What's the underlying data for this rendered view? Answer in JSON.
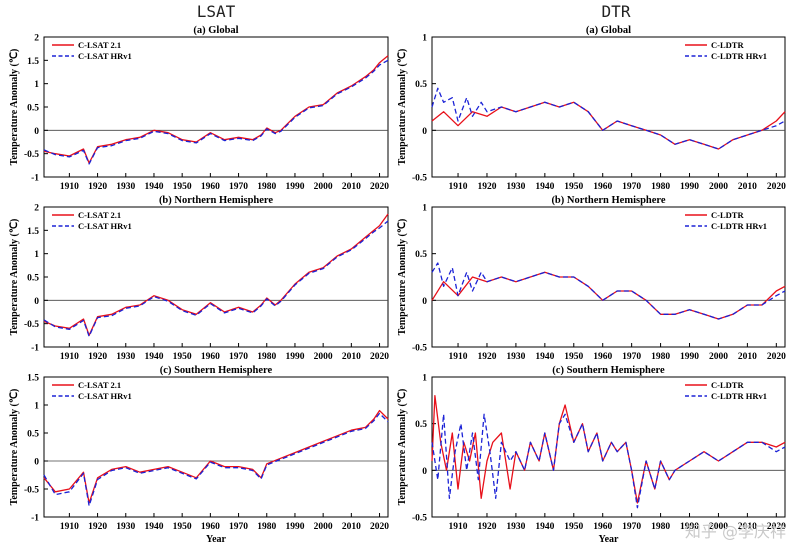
{
  "columns": {
    "left": "LSAT",
    "right": "DTR"
  },
  "watermark": "知乎 @李庆祥",
  "colors": {
    "series1": "#e8101a",
    "series2": "#1b22d6",
    "zero": "#444444"
  },
  "chart_data": [
    {
      "type": "line",
      "panel": "lsat-global",
      "title": "(a) Global",
      "ylabel": "Temperature Anomaly (℃)",
      "xlabel": "",
      "xlim": [
        1901,
        2023
      ],
      "ylim": [
        -1,
        2
      ],
      "yticks": [
        -1,
        -0.5,
        0,
        0.5,
        1,
        1.5,
        2
      ],
      "xticks": [
        1910,
        1920,
        1930,
        1940,
        1950,
        1960,
        1970,
        1980,
        1990,
        2000,
        2010,
        2020
      ],
      "legend": "top-left",
      "series": [
        {
          "name": "C-LSAT 2.1",
          "x": [
            1901,
            1905,
            1910,
            1915,
            1917,
            1920,
            1925,
            1930,
            1935,
            1940,
            1945,
            1950,
            1955,
            1960,
            1965,
            1970,
            1975,
            1978,
            1980,
            1983,
            1985,
            1990,
            1995,
            2000,
            2005,
            2010,
            2015,
            2018,
            2020,
            2023
          ],
          "y": [
            -0.45,
            -0.5,
            -0.55,
            -0.4,
            -0.7,
            -0.35,
            -0.3,
            -0.2,
            -0.15,
            0.0,
            -0.05,
            -0.2,
            -0.25,
            -0.05,
            -0.2,
            -0.15,
            -0.2,
            -0.1,
            0.05,
            -0.05,
            0.0,
            0.3,
            0.5,
            0.55,
            0.8,
            0.95,
            1.15,
            1.3,
            1.45,
            1.6
          ]
        },
        {
          "name": "C-LSAT HRv1",
          "x": [
            1901,
            1905,
            1910,
            1915,
            1917,
            1920,
            1925,
            1930,
            1935,
            1940,
            1945,
            1950,
            1955,
            1960,
            1965,
            1970,
            1975,
            1978,
            1980,
            1983,
            1985,
            1990,
            1995,
            2000,
            2005,
            2010,
            2015,
            2018,
            2020,
            2023
          ],
          "y": [
            -0.42,
            -0.52,
            -0.57,
            -0.43,
            -0.72,
            -0.37,
            -0.33,
            -0.22,
            -0.17,
            -0.02,
            -0.07,
            -0.22,
            -0.27,
            -0.07,
            -0.22,
            -0.17,
            -0.22,
            -0.12,
            0.03,
            -0.07,
            -0.02,
            0.28,
            0.48,
            0.53,
            0.78,
            0.93,
            1.12,
            1.27,
            1.4,
            1.5
          ]
        }
      ]
    },
    {
      "type": "line",
      "panel": "lsat-nh",
      "title": "(b) Northern Hemisphere",
      "ylabel": "Temperature Anomaly (℃)",
      "xlabel": "",
      "xlim": [
        1901,
        2023
      ],
      "ylim": [
        -1,
        2
      ],
      "yticks": [
        -1,
        -0.5,
        0,
        0.5,
        1,
        1.5,
        2
      ],
      "xticks": [
        1910,
        1920,
        1930,
        1940,
        1950,
        1960,
        1970,
        1980,
        1990,
        2000,
        2010,
        2020
      ],
      "legend": "top-left",
      "series": [
        {
          "name": "C-LSAT 2.1",
          "x": [
            1901,
            1905,
            1910,
            1915,
            1917,
            1920,
            1925,
            1930,
            1935,
            1940,
            1945,
            1950,
            1955,
            1960,
            1965,
            1970,
            1975,
            1978,
            1980,
            1983,
            1985,
            1990,
            1995,
            2000,
            2005,
            2010,
            2015,
            2018,
            2020,
            2023
          ],
          "y": [
            -0.45,
            -0.55,
            -0.6,
            -0.4,
            -0.75,
            -0.35,
            -0.3,
            -0.15,
            -0.1,
            0.1,
            0.0,
            -0.2,
            -0.3,
            -0.05,
            -0.25,
            -0.15,
            -0.25,
            -0.1,
            0.05,
            -0.1,
            0.0,
            0.35,
            0.6,
            0.7,
            0.95,
            1.1,
            1.35,
            1.5,
            1.6,
            1.85
          ]
        },
        {
          "name": "C-LSAT HRv1",
          "x": [
            1901,
            1905,
            1910,
            1915,
            1917,
            1920,
            1925,
            1930,
            1935,
            1940,
            1945,
            1950,
            1955,
            1960,
            1965,
            1970,
            1975,
            1978,
            1980,
            1983,
            1985,
            1990,
            1995,
            2000,
            2005,
            2010,
            2015,
            2018,
            2020,
            2023
          ],
          "y": [
            -0.42,
            -0.57,
            -0.62,
            -0.43,
            -0.77,
            -0.37,
            -0.33,
            -0.17,
            -0.12,
            0.08,
            -0.02,
            -0.22,
            -0.32,
            -0.07,
            -0.27,
            -0.17,
            -0.27,
            -0.12,
            0.03,
            -0.12,
            -0.02,
            0.33,
            0.58,
            0.68,
            0.93,
            1.08,
            1.32,
            1.47,
            1.55,
            1.7
          ]
        }
      ]
    },
    {
      "type": "line",
      "panel": "lsat-sh",
      "title": "(c) Southern Hemisphere",
      "ylabel": "Temperature Anomaly (℃)",
      "xlabel": "Year",
      "xlim": [
        1901,
        2023
      ],
      "ylim": [
        -1,
        1.5
      ],
      "yticks": [
        -1,
        -0.5,
        0,
        0.5,
        1,
        1.5
      ],
      "xticks": [
        1910,
        1920,
        1930,
        1940,
        1950,
        1960,
        1970,
        1980,
        1990,
        2000,
        2010,
        2020
      ],
      "legend": "top-left",
      "series": [
        {
          "name": "C-LSAT 2.1",
          "x": [
            1901,
            1905,
            1910,
            1915,
            1917,
            1920,
            1925,
            1930,
            1935,
            1940,
            1945,
            1950,
            1955,
            1960,
            1965,
            1970,
            1975,
            1978,
            1980,
            1985,
            1990,
            1995,
            2000,
            2005,
            2010,
            2015,
            2018,
            2020,
            2023
          ],
          "y": [
            -0.3,
            -0.55,
            -0.5,
            -0.2,
            -0.75,
            -0.3,
            -0.15,
            -0.1,
            -0.2,
            -0.15,
            -0.1,
            -0.2,
            -0.3,
            0.0,
            -0.1,
            -0.1,
            -0.15,
            -0.3,
            -0.05,
            0.05,
            0.15,
            0.25,
            0.35,
            0.45,
            0.55,
            0.6,
            0.75,
            0.9,
            0.75
          ]
        },
        {
          "name": "C-LSAT HRv1",
          "x": [
            1901,
            1905,
            1910,
            1915,
            1917,
            1920,
            1925,
            1930,
            1935,
            1940,
            1945,
            1950,
            1955,
            1960,
            1965,
            1970,
            1975,
            1978,
            1980,
            1985,
            1990,
            1995,
            2000,
            2005,
            2010,
            2015,
            2018,
            2020,
            2023
          ],
          "y": [
            -0.25,
            -0.6,
            -0.55,
            -0.22,
            -0.8,
            -0.33,
            -0.17,
            -0.12,
            -0.22,
            -0.17,
            -0.12,
            -0.22,
            -0.32,
            -0.02,
            -0.12,
            -0.12,
            -0.17,
            -0.32,
            -0.07,
            0.03,
            0.13,
            0.23,
            0.33,
            0.43,
            0.53,
            0.58,
            0.72,
            0.85,
            0.7
          ]
        }
      ]
    },
    {
      "type": "line",
      "panel": "dtr-global",
      "title": "(a) Global",
      "ylabel": "Temperature Anomaly (℃)",
      "xlabel": "",
      "xlim": [
        1901,
        2023
      ],
      "ylim": [
        -0.5,
        1
      ],
      "yticks": [
        -0.5,
        0,
        0.5,
        1
      ],
      "xticks": [
        1910,
        1920,
        1930,
        1940,
        1950,
        1960,
        1970,
        1980,
        1990,
        2000,
        2010,
        2020
      ],
      "legend": "top-right",
      "series": [
        {
          "name": "C-LDTR",
          "x": [
            1901,
            1905,
            1910,
            1915,
            1920,
            1925,
            1930,
            1935,
            1940,
            1945,
            1950,
            1955,
            1960,
            1965,
            1970,
            1975,
            1980,
            1985,
            1990,
            1995,
            2000,
            2005,
            2010,
            2015,
            2020,
            2023
          ],
          "y": [
            0.1,
            0.2,
            0.05,
            0.2,
            0.15,
            0.25,
            0.2,
            0.25,
            0.3,
            0.25,
            0.3,
            0.2,
            0.0,
            0.1,
            0.05,
            0.0,
            -0.05,
            -0.15,
            -0.1,
            -0.15,
            -0.2,
            -0.1,
            -0.05,
            0.0,
            0.1,
            0.2
          ]
        },
        {
          "name": "C-LDTR HRv1",
          "x": [
            1901,
            1903,
            1905,
            1908,
            1910,
            1913,
            1915,
            1918,
            1920,
            1925,
            1930,
            1935,
            1940,
            1945,
            1950,
            1955,
            1960,
            1965,
            1970,
            1975,
            1980,
            1985,
            1990,
            1995,
            2000,
            2005,
            2010,
            2015,
            2020,
            2023
          ],
          "y": [
            0.25,
            0.45,
            0.3,
            0.35,
            0.1,
            0.35,
            0.15,
            0.3,
            0.2,
            0.25,
            0.2,
            0.25,
            0.3,
            0.25,
            0.3,
            0.2,
            0.0,
            0.1,
            0.05,
            0.0,
            -0.05,
            -0.15,
            -0.1,
            -0.15,
            -0.2,
            -0.1,
            -0.05,
            0.0,
            0.05,
            0.1
          ]
        }
      ]
    },
    {
      "type": "line",
      "panel": "dtr-nh",
      "title": "(b) Northern Hemisphere",
      "ylabel": "Temperature Anomaly (℃)",
      "xlabel": "",
      "xlim": [
        1901,
        2023
      ],
      "ylim": [
        -0.5,
        1
      ],
      "yticks": [
        -0.5,
        0,
        0.5,
        1
      ],
      "xticks": [
        1910,
        1920,
        1930,
        1940,
        1950,
        1960,
        1970,
        1980,
        1990,
        2000,
        2010,
        2020
      ],
      "legend": "top-right",
      "series": [
        {
          "name": "C-LDTR",
          "x": [
            1901,
            1905,
            1910,
            1915,
            1920,
            1925,
            1930,
            1935,
            1940,
            1945,
            1950,
            1955,
            1960,
            1965,
            1970,
            1975,
            1980,
            1985,
            1990,
            1995,
            2000,
            2005,
            2010,
            2015,
            2020,
            2023
          ],
          "y": [
            0.0,
            0.2,
            0.05,
            0.25,
            0.2,
            0.25,
            0.2,
            0.25,
            0.3,
            0.25,
            0.25,
            0.15,
            0.0,
            0.1,
            0.1,
            0.0,
            -0.15,
            -0.15,
            -0.1,
            -0.15,
            -0.2,
            -0.15,
            -0.05,
            -0.05,
            0.1,
            0.15
          ]
        },
        {
          "name": "C-LDTR HRv1",
          "x": [
            1901,
            1903,
            1905,
            1908,
            1910,
            1913,
            1915,
            1918,
            1920,
            1925,
            1930,
            1935,
            1940,
            1945,
            1950,
            1955,
            1960,
            1965,
            1970,
            1975,
            1980,
            1985,
            1990,
            1995,
            2000,
            2005,
            2010,
            2015,
            2020,
            2023
          ],
          "y": [
            0.3,
            0.4,
            0.15,
            0.35,
            0.05,
            0.3,
            0.1,
            0.3,
            0.2,
            0.25,
            0.2,
            0.25,
            0.3,
            0.25,
            0.25,
            0.15,
            0.0,
            0.1,
            0.1,
            0.0,
            -0.15,
            -0.15,
            -0.1,
            -0.15,
            -0.2,
            -0.15,
            -0.05,
            -0.05,
            0.05,
            0.1
          ]
        }
      ]
    },
    {
      "type": "line",
      "panel": "dtr-sh",
      "title": "(c) Southern Hemisphere",
      "ylabel": "Temperature Anomaly (℃)",
      "xlabel": "Year",
      "xlim": [
        1901,
        2023
      ],
      "ylim": [
        -0.5,
        1
      ],
      "yticks": [
        -0.5,
        0,
        0.5,
        1
      ],
      "xticks": [
        1910,
        1920,
        1930,
        1940,
        1950,
        1960,
        1970,
        1980,
        1990,
        2000,
        2010,
        2020
      ],
      "legend": "top-right",
      "series": [
        {
          "name": "C-LDTR",
          "x": [
            1901,
            1902,
            1904,
            1906,
            1908,
            1910,
            1912,
            1914,
            1916,
            1918,
            1920,
            1922,
            1925,
            1928,
            1930,
            1933,
            1935,
            1938,
            1940,
            1943,
            1945,
            1947,
            1950,
            1953,
            1955,
            1958,
            1960,
            1963,
            1965,
            1968,
            1970,
            1972,
            1975,
            1978,
            1980,
            1983,
            1985,
            1990,
            1995,
            2000,
            2005,
            2010,
            2015,
            2020,
            2023
          ],
          "y": [
            0.1,
            0.8,
            0.3,
            0.0,
            0.4,
            -0.2,
            0.3,
            0.1,
            0.4,
            -0.3,
            0.1,
            0.3,
            0.4,
            -0.2,
            0.2,
            0.0,
            0.3,
            0.1,
            0.4,
            0.0,
            0.5,
            0.7,
            0.3,
            0.5,
            0.2,
            0.4,
            0.1,
            0.3,
            0.2,
            0.3,
            0.0,
            -0.35,
            0.1,
            -0.2,
            0.1,
            -0.1,
            0.0,
            0.1,
            0.2,
            0.1,
            0.2,
            0.3,
            0.3,
            0.25,
            0.3
          ]
        },
        {
          "name": "C-LDTR HRv1",
          "x": [
            1901,
            1903,
            1905,
            1907,
            1909,
            1911,
            1913,
            1915,
            1917,
            1919,
            1921,
            1923,
            1925,
            1928,
            1930,
            1933,
            1935,
            1938,
            1940,
            1943,
            1945,
            1947,
            1950,
            1953,
            1955,
            1958,
            1960,
            1963,
            1965,
            1968,
            1970,
            1972,
            1975,
            1978,
            1980,
            1983,
            1985,
            1990,
            1995,
            2000,
            2005,
            2010,
            2015,
            2020,
            2023
          ],
          "y": [
            0.3,
            -0.1,
            0.6,
            -0.3,
            0.2,
            0.5,
            0.0,
            0.4,
            -0.1,
            0.6,
            0.2,
            -0.3,
            0.3,
            0.1,
            0.2,
            0.0,
            0.3,
            0.1,
            0.4,
            0.0,
            0.5,
            0.6,
            0.3,
            0.5,
            0.2,
            0.4,
            0.1,
            0.3,
            0.2,
            0.3,
            0.0,
            -0.4,
            0.1,
            -0.2,
            0.1,
            -0.1,
            0.0,
            0.1,
            0.2,
            0.1,
            0.2,
            0.3,
            0.3,
            0.2,
            0.25
          ]
        }
      ]
    }
  ]
}
